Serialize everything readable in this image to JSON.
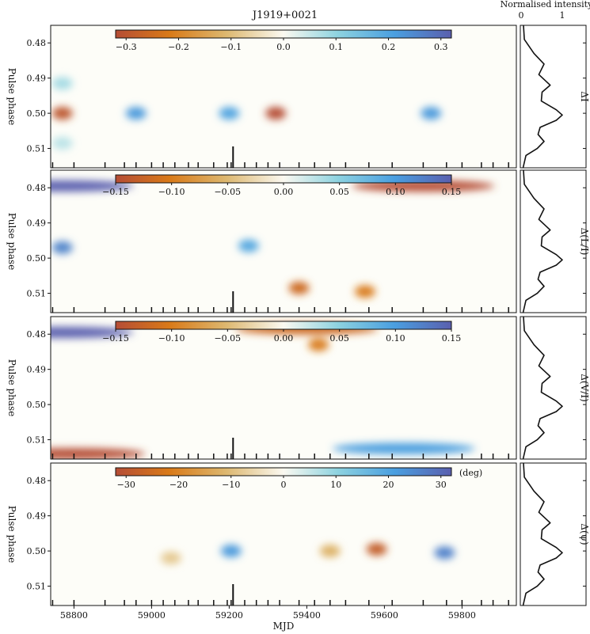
{
  "figure": {
    "title": "J1919+0021",
    "xlabel": "MJD",
    "profile_label": "Normalised intensity",
    "profile_ticks": [
      "0",
      "1"
    ]
  },
  "chart_data": {
    "type": "heatmap",
    "title": "J1919+0021",
    "xlabel": "MJD",
    "xlim": [
      58740,
      59940
    ],
    "x_ticks": [
      58800,
      59000,
      59200,
      59400,
      59600,
      59800
    ],
    "ylim": [
      0.475,
      0.5155
    ],
    "y_ticks": [
      "0.48",
      "0.49",
      "0.50",
      "0.51"
    ],
    "observation_epochs": [
      58745,
      58800,
      58880,
      58930,
      58960,
      59000,
      59030,
      59060,
      59095,
      59120,
      59160,
      59195,
      59205,
      59240,
      59270,
      59300,
      59330,
      59380,
      59420,
      59460,
      59500,
      59560,
      59620,
      59700,
      59760,
      59800,
      59850,
      59880,
      59920
    ],
    "highlighted_epoch": 59210,
    "panels": [
      {
        "quantity": "ΔI",
        "ylabel": "Pulse phase",
        "colorbar": {
          "range": [
            -0.32,
            0.32
          ],
          "ticks": [
            "−0.3",
            "−0.2",
            "−0.1",
            "0.0",
            "0.1",
            "0.2",
            "0.3"
          ],
          "unit": ""
        },
        "features": [
          {
            "mjd": 58770,
            "phase": 0.5,
            "value": -0.3
          },
          {
            "mjd": 58960,
            "phase": 0.5,
            "value": 0.22
          },
          {
            "mjd": 59200,
            "phase": 0.5,
            "value": 0.2
          },
          {
            "mjd": 59320,
            "phase": 0.5,
            "value": -0.32
          },
          {
            "mjd": 59720,
            "phase": 0.5,
            "value": 0.22
          },
          {
            "mjd": 58770,
            "phase": 0.4915,
            "value": 0.08
          },
          {
            "mjd": 58770,
            "phase": 0.5085,
            "value": 0.06
          }
        ]
      },
      {
        "quantity": "Δ(L/I)",
        "ylabel": "Pulse phase",
        "colorbar": {
          "range": [
            -0.15,
            0.15
          ],
          "ticks": [
            "−0.15",
            "−0.10",
            "−0.05",
            "0.00",
            "0.05",
            "0.10",
            "0.15"
          ],
          "unit": ""
        },
        "features": [
          {
            "mjd": 58770,
            "phase": 0.4795,
            "value": 0.15
          },
          {
            "mjd": 58770,
            "phase": 0.497,
            "value": 0.12
          },
          {
            "mjd": 59250,
            "phase": 0.4965,
            "value": 0.09
          },
          {
            "mjd": 59380,
            "phase": 0.5085,
            "value": -0.12
          },
          {
            "mjd": 59550,
            "phase": 0.5095,
            "value": -0.1
          },
          {
            "mjd": 59700,
            "phase": 0.4795,
            "value": -0.15
          }
        ]
      },
      {
        "quantity": "Δ(V/I)",
        "ylabel": "Pulse phase",
        "colorbar": {
          "range": [
            -0.15,
            0.15
          ],
          "ticks": [
            "−0.15",
            "−0.10",
            "−0.05",
            "0.00",
            "0.05",
            "0.10",
            "0.15"
          ],
          "unit": ""
        },
        "features": [
          {
            "mjd": 58770,
            "phase": 0.4795,
            "value": 0.15
          },
          {
            "mjd": 58800,
            "phase": 0.514,
            "value": -0.15
          },
          {
            "mjd": 59400,
            "phase": 0.4785,
            "value": -0.12
          },
          {
            "mjd": 59430,
            "phase": 0.483,
            "value": -0.1
          },
          {
            "mjd": 59650,
            "phase": 0.5125,
            "value": 0.1
          }
        ]
      },
      {
        "quantity": "Δ(ψ)",
        "ylabel": "Pulse phase",
        "colorbar": {
          "range": [
            -32,
            32
          ],
          "ticks": [
            "−30",
            "−20",
            "−10",
            "0",
            "10",
            "20",
            "30"
          ],
          "unit": "(deg)"
        },
        "features": [
          {
            "mjd": 59205,
            "phase": 0.5,
            "value": 22
          },
          {
            "mjd": 59460,
            "phase": 0.5,
            "value": -12
          },
          {
            "mjd": 59580,
            "phase": 0.4995,
            "value": -28
          },
          {
            "mjd": 59755,
            "phase": 0.5005,
            "value": 26
          },
          {
            "mjd": 59050,
            "phase": 0.502,
            "value": -8
          }
        ]
      }
    ],
    "mean_profile": {
      "phase": [
        0.475,
        0.479,
        0.483,
        0.486,
        0.489,
        0.492,
        0.494,
        0.4965,
        0.499,
        0.5005,
        0.502,
        0.504,
        0.506,
        0.508,
        0.51,
        0.512,
        0.5155
      ],
      "intensity": [
        0.04,
        0.06,
        0.3,
        0.55,
        0.42,
        0.7,
        0.5,
        0.48,
        0.85,
        1.0,
        0.85,
        0.45,
        0.4,
        0.55,
        0.38,
        0.1,
        0.03
      ]
    }
  }
}
